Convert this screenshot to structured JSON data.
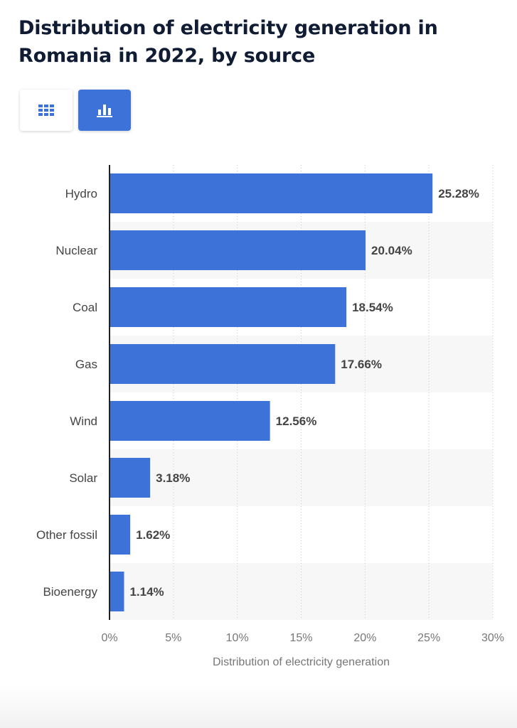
{
  "title": "Distribution of electricity generation in Romania in 2022, by source",
  "controls": {
    "table_icon": "grid-icon",
    "chart_icon": "bar-chart-icon",
    "active": "chart"
  },
  "colors": {
    "bar": "#3d73d8",
    "accent_button": "#3d73d8",
    "stripe": "#f7f7f7",
    "label": "#444444",
    "value": "#444444",
    "axis_tick": "#777777",
    "grid": "#c8c8c8"
  },
  "chart_data": {
    "type": "bar",
    "orientation": "horizontal",
    "categories": [
      "Hydro",
      "Nuclear",
      "Coal",
      "Gas",
      "Wind",
      "Solar",
      "Other fossil",
      "Bioenergy"
    ],
    "values": [
      25.28,
      20.04,
      18.54,
      17.66,
      12.56,
      3.18,
      1.62,
      1.14
    ],
    "value_labels": [
      "25.28%",
      "20.04%",
      "18.54%",
      "17.66%",
      "12.56%",
      "3.18%",
      "1.62%",
      "1.14%"
    ],
    "xlim": [
      0,
      30
    ],
    "x_ticks": [
      0,
      5,
      10,
      15,
      20,
      25,
      30
    ],
    "x_tick_labels": [
      "0%",
      "5%",
      "10%",
      "15%",
      "20%",
      "25%",
      "30%"
    ],
    "xlabel": "Distribution of electricity generation",
    "ylabel": "",
    "grid": "vertical dotted",
    "legend": "none"
  }
}
